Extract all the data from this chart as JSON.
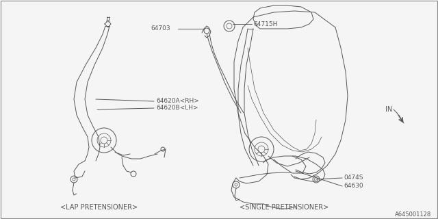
{
  "background_color": "#f5f5f5",
  "line_color": "#555555",
  "text_color": "#555555",
  "fig_width": 6.4,
  "fig_height": 3.2,
  "dpi": 100,
  "lap_pretensioner_label": "<LAP PRETENSIONER>",
  "single_pretensioner_label": "<SINGLE PRETENSIONER>",
  "diagram_code": "A645001128",
  "label_64703": "64703",
  "label_64715H": "64715H",
  "label_64620A": "64620A<RH>",
  "label_64620B": "64620B<LH>",
  "label_0474S": "0474S",
  "label_64630": "64630",
  "label_IN": "IN"
}
